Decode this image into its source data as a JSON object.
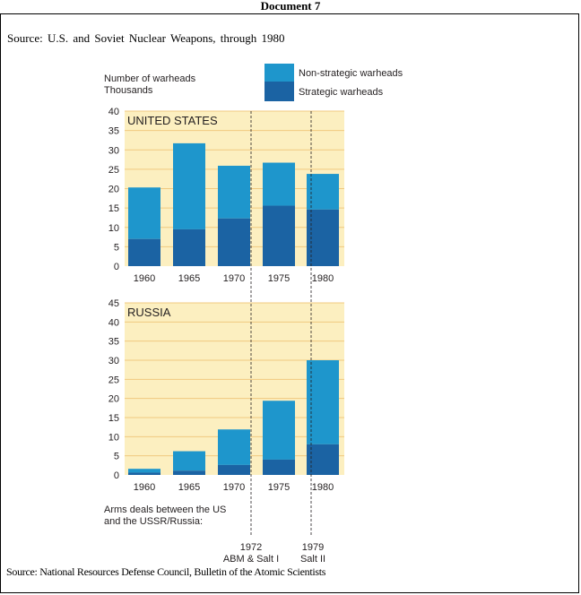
{
  "document_title": "Document 7",
  "source_top": "Source: U.S. and Soviet Nuclear Weapons, through 1980",
  "source_bottom": "Source: National Resources Defense Council, Bulletin of the Atomic Scientists",
  "colors": {
    "panel_bg": "#fcefc0",
    "non_strategic": "#1e96cc",
    "strategic": "#1b63a3",
    "grid": "#f0c97f"
  },
  "chart_data": {
    "type": "bar",
    "stacked": true,
    "ylabel_line1": "Number of warheads",
    "ylabel_line2": "Thousands",
    "legend": {
      "placement": "top-right",
      "entries": [
        "Non-strategic warheads",
        "Strategic warheads"
      ]
    },
    "categories": [
      "1960",
      "1965",
      "1970",
      "1975",
      "1980"
    ],
    "panels": [
      {
        "title": "UNITED STATES",
        "ylim": [
          0,
          40
        ],
        "yticks": [
          "0",
          "5",
          "10",
          "15",
          "20",
          "25",
          "30",
          "35",
          "40"
        ],
        "series": [
          {
            "name": "Strategic warheads",
            "values": [
              7,
              9.5,
              12.3,
              15.6,
              14.6
            ]
          },
          {
            "name": "Non-strategic warheads",
            "values": [
              13.3,
              22.2,
              13.6,
              11.1,
              9.2
            ]
          }
        ]
      },
      {
        "title": "RUSSIA",
        "ylim": [
          0,
          45
        ],
        "yticks": [
          "0",
          "5",
          "10",
          "15",
          "20",
          "25",
          "30",
          "35",
          "40",
          "45"
        ],
        "series": [
          {
            "name": "Strategic warheads",
            "values": [
              0.6,
              1.1,
              2.6,
              4.0,
              8.0
            ]
          },
          {
            "name": "Non-strategic warheads",
            "values": [
              1.0,
              5.1,
              9.3,
              15.4,
              22.0
            ]
          }
        ]
      }
    ],
    "arms_deals_label_line1": "Arms deals between the US",
    "arms_deals_label_line2": "and the USSR/Russia:",
    "arms_deals": [
      {
        "year": "1972",
        "label": "ABM & Salt I"
      },
      {
        "year": "1979",
        "label": "Salt II"
      }
    ]
  }
}
